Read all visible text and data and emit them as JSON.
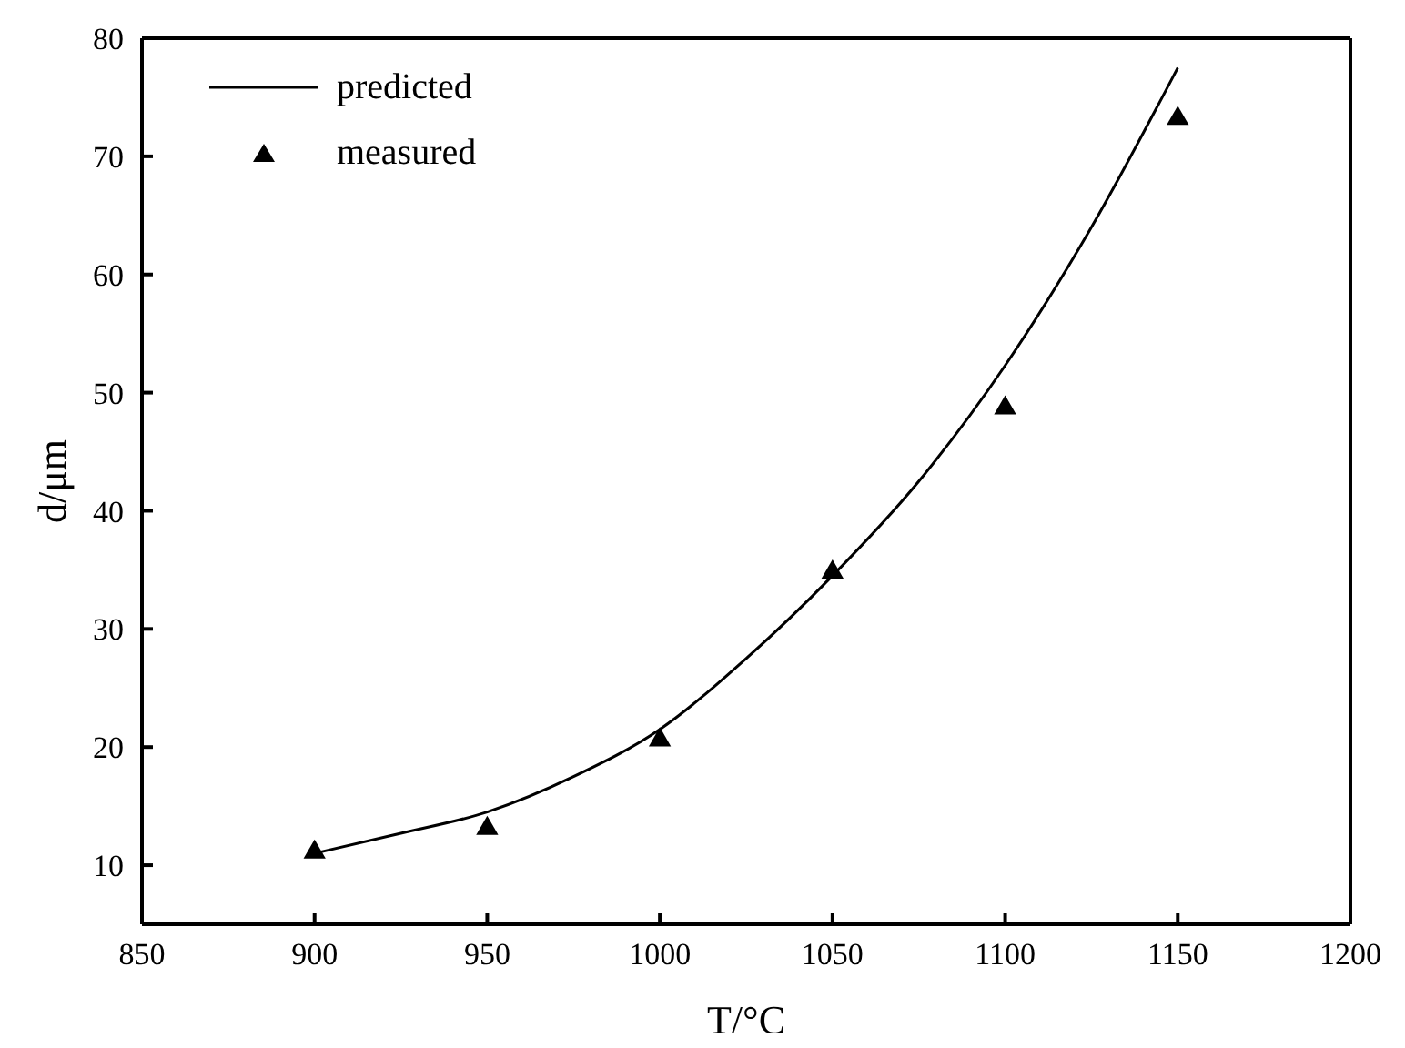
{
  "chart_data": {
    "type": "line",
    "xlabel": "T/°C",
    "ylabel": "d/μm",
    "xlim": [
      850,
      1200
    ],
    "xticks": [
      850,
      900,
      950,
      1000,
      1050,
      1100,
      1150,
      1200
    ],
    "ylim": [
      5,
      80
    ],
    "yticks": [
      10,
      20,
      30,
      40,
      50,
      60,
      70,
      80
    ],
    "legend": "top left",
    "series": [
      {
        "name": "predicted",
        "color": "#000000",
        "marker": "none",
        "line_style": "solid",
        "x": [
          900,
          925,
          950,
          975,
          1000,
          1025,
          1050,
          1075,
          1100,
          1125,
          1150
        ],
        "values": [
          11,
          12.7,
          14.5,
          17.5,
          21.5,
          27.5,
          34.5,
          42.5,
          52.3,
          64,
          77.5
        ]
      },
      {
        "name": "measured",
        "type": "scatter",
        "color": "#000000",
        "marker": "triangle",
        "x": [
          900,
          950,
          1000,
          1050,
          1100,
          1150
        ],
        "values": [
          11.1,
          13.1,
          20.6,
          34.8,
          48.7,
          73.2
        ]
      }
    ]
  }
}
